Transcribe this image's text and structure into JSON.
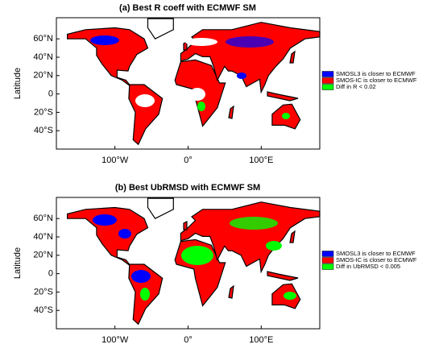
{
  "panels": [
    {
      "type": "map",
      "title": "(a) Best R coeff with ECMWF SM",
      "ylabel": "Latitude",
      "xlim": [
        -180,
        180
      ],
      "ylim": [
        -60,
        83
      ],
      "xticks": [
        {
          "value": -100,
          "label": "100°W"
        },
        {
          "value": 0,
          "label": "0°"
        },
        {
          "value": 100,
          "label": "100°E"
        }
      ],
      "yticks": [
        {
          "value": 60,
          "label": "60°N"
        },
        {
          "value": 40,
          "label": "40°N"
        },
        {
          "value": 20,
          "label": "20°N"
        },
        0,
        {
          "value": -20,
          "label": "20°S"
        },
        {
          "value": -40,
          "label": "40°S"
        }
      ],
      "legend": [
        {
          "label": "SMOSL3 is closer to ECMWF",
          "color": "#0000ff"
        },
        {
          "label": "SMOS-IC is closer to ECMWF",
          "color": "#ff0000"
        },
        {
          "label": "Diff in R < 0.02",
          "color": "#00ff00"
        }
      ]
    },
    {
      "type": "map",
      "title": "(b) Best UbRMSD with ECMWF SM",
      "ylabel": "Latitude",
      "xlim": [
        -180,
        180
      ],
      "ylim": [
        -60,
        83
      ],
      "xticks": [
        {
          "value": -100,
          "label": "100°W"
        },
        {
          "value": 0,
          "label": "0°"
        },
        {
          "value": 100,
          "label": "100°E"
        }
      ],
      "yticks": [
        {
          "value": 60,
          "label": "60°N"
        },
        {
          "value": 40,
          "label": "40°N"
        },
        {
          "value": 20,
          "label": "20°N"
        },
        0,
        {
          "value": -20,
          "label": "20°S"
        },
        {
          "value": -40,
          "label": "40°S"
        }
      ],
      "legend": [
        {
          "label": "SMOSL3 is closer to ECMWF",
          "color": "#0000ff"
        },
        {
          "label": "SMOS-IC is closer to ECMWF",
          "color": "#ff0000"
        },
        {
          "label": "Diff in UbRMSD < 0.005",
          "color": "#00ff00"
        }
      ]
    }
  ]
}
